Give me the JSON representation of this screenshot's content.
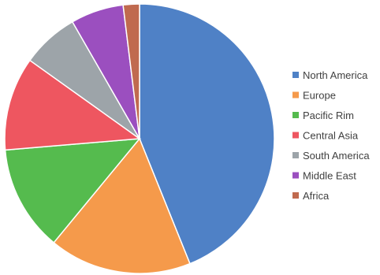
{
  "chart_data": {
    "type": "pie",
    "title": "",
    "legend_position": "right",
    "slices": [
      {
        "label": "North America",
        "value": 45.0,
        "color": "#4f81c6"
      },
      {
        "label": "Europe",
        "value": 17.5,
        "color": "#f59a4b"
      },
      {
        "label": "Pacific Rim",
        "value": 13.0,
        "color": "#55bb4e"
      },
      {
        "label": "Central Asia",
        "value": 11.5,
        "color": "#ee5660"
      },
      {
        "label": "South America",
        "value": 7.0,
        "color": "#9da4a9"
      },
      {
        "label": "Middle East",
        "value": 6.5,
        "color": "#9b4fbf"
      },
      {
        "label": "Africa",
        "value": 2.0,
        "color": "#c06a4f"
      }
    ]
  }
}
